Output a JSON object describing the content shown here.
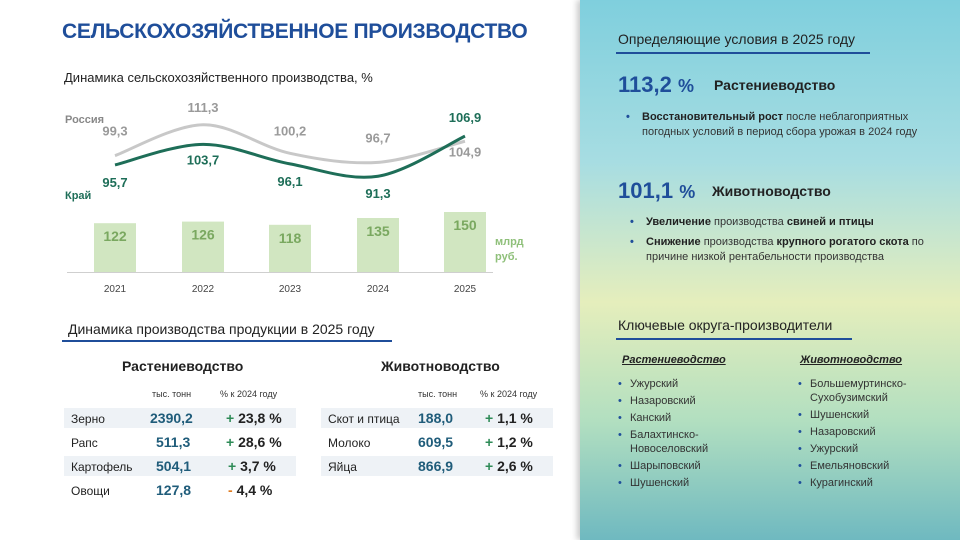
{
  "title": "СЕЛЬСКОХОЗЯЙСТВЕННОЕ ПРОИЗВОДСТВО",
  "chart_data": {
    "type": "bar+line",
    "title": "Динамика сельскохозяйственного производства, %",
    "categories": [
      "2021",
      "2022",
      "2023",
      "2024",
      "2025"
    ],
    "series": [
      {
        "name": "Россия",
        "type": "line",
        "values": [
          99.3,
          111.3,
          100.2,
          96.7,
          104.9
        ],
        "labels": [
          "99,3",
          "111,3",
          "100,2",
          "96,7",
          "104,9"
        ],
        "color": "#c8c8c8"
      },
      {
        "name": "Край",
        "type": "line",
        "values": [
          95.7,
          103.7,
          96.1,
          91.3,
          106.9
        ],
        "labels": [
          "95,7",
          "103,7",
          "96,1",
          "91,3",
          "106,9"
        ],
        "color": "#1e6e58"
      },
      {
        "name": "млрд руб.",
        "type": "bar",
        "values": [
          122,
          126,
          118,
          135,
          150
        ],
        "labels": [
          "122",
          "126",
          "118",
          "135",
          "150"
        ],
        "color": "#d1e6c1"
      }
    ],
    "unit_label_1": "млрд",
    "unit_label_2": "руб."
  },
  "production": {
    "title": "Динамика производства продукции в 2025 году",
    "unit_header": "тыс. тонн",
    "change_header": "% к 2024 году",
    "crop": {
      "title": "Растениеводство",
      "rows": [
        {
          "name": "Зерно",
          "value": "2390,2",
          "sign": "+",
          "change": "23,8 %"
        },
        {
          "name": "Рапс",
          "value": "511,3",
          "sign": "+",
          "change": "28,6 %"
        },
        {
          "name": "Картофель",
          "value": "504,1",
          "sign": "+",
          "change": "3,7 %"
        },
        {
          "name": "Овощи",
          "value": "127,8",
          "sign": "-",
          "change": "4,4 %"
        }
      ]
    },
    "livestock": {
      "title": "Животноводство",
      "rows": [
        {
          "name": "Скот и птица",
          "value": "188,0",
          "sign": "+",
          "change": "1,1 %"
        },
        {
          "name": "Молоко",
          "value": "609,5",
          "sign": "+",
          "change": "1,2 %"
        },
        {
          "name": "Яйца",
          "value": "866,9",
          "sign": "+",
          "change": "2,6 %"
        }
      ]
    }
  },
  "panel": {
    "conditions_title": "Определяющие условия в 2025 году",
    "crop_pct": "113,2",
    "pct_sign": "%",
    "crop_label": "Растениеводство",
    "crop_b1_bold": "Восстановительный рост",
    "crop_b1_text": " после неблагоприятных погодных условий в период сбора урожая в 2024 году",
    "live_pct": "101,1",
    "live_label": "Животноводство",
    "live_b1_bold1": "Увеличение",
    "live_b1_mid": " производства ",
    "live_b1_bold2": "свиней и птицы",
    "live_b2_bold1": "Снижение",
    "live_b2_mid": " производства ",
    "live_b2_bold2": "крупного рогатого скота",
    "live_b2_text": " по причине низкой рентабельности производства",
    "districts_title": "Ключевые округа-производители",
    "crop_head": "Растениеводство",
    "crop_districts": [
      "Ужурский",
      "Назаровский",
      "Канский",
      "Балахтинско-Новоселовский",
      "Шарыповский",
      "Шушенский"
    ],
    "live_head": "Животноводство",
    "live_districts": [
      "Большемуртинско-Сухобузимский",
      "Шушенский",
      "Назаровский",
      "Ужурский",
      "Емельяновский",
      "Курагинский"
    ]
  }
}
